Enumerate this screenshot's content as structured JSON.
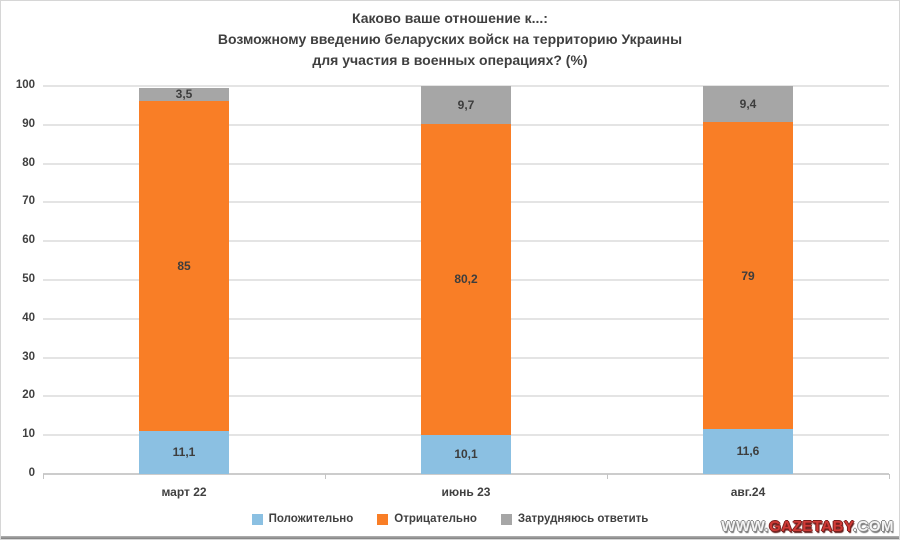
{
  "title": {
    "lines": [
      "Каково ваше отношение к...:",
      "Возможному введению беларуских войск на территорию Украины",
      "для участия в военных операциях? (%)"
    ]
  },
  "chart_data": {
    "type": "bar",
    "stacked": true,
    "title": "Каково ваше отношение к...: Возможному введению беларуских войск на территорию Украины для участия в военных операциях? (%)",
    "categories": [
      "март 22",
      "июнь 23",
      "авг.24"
    ],
    "series": [
      {
        "name": "Положительно",
        "color": "#8bc0e2",
        "values": [
          11.1,
          10.1,
          11.6
        ],
        "labels": [
          "11,1",
          "10,1",
          "11,6"
        ]
      },
      {
        "name": "Отрицательно",
        "color": "#f97e26",
        "values": [
          85.0,
          80.2,
          79.0
        ],
        "labels": [
          "85",
          "80,2",
          "79"
        ]
      },
      {
        "name": "Затрудняюсь ответить",
        "color": "#a6a6a6",
        "values": [
          3.5,
          9.7,
          9.4
        ],
        "labels": [
          "3,5",
          "9,7",
          "9,4"
        ]
      }
    ],
    "ylim": [
      0,
      100
    ],
    "ytick_step": 10,
    "grid": true,
    "legend_position": "bottom",
    "colors": {
      "positive": "#8bc0e2",
      "negative": "#f97e26",
      "undecided": "#a6a6a6",
      "text": "#404040",
      "gridline": "#e4e4e4"
    }
  },
  "watermark": {
    "prefix": "WWW.",
    "brand": "GAZETABY",
    "suffix": ".COM"
  }
}
